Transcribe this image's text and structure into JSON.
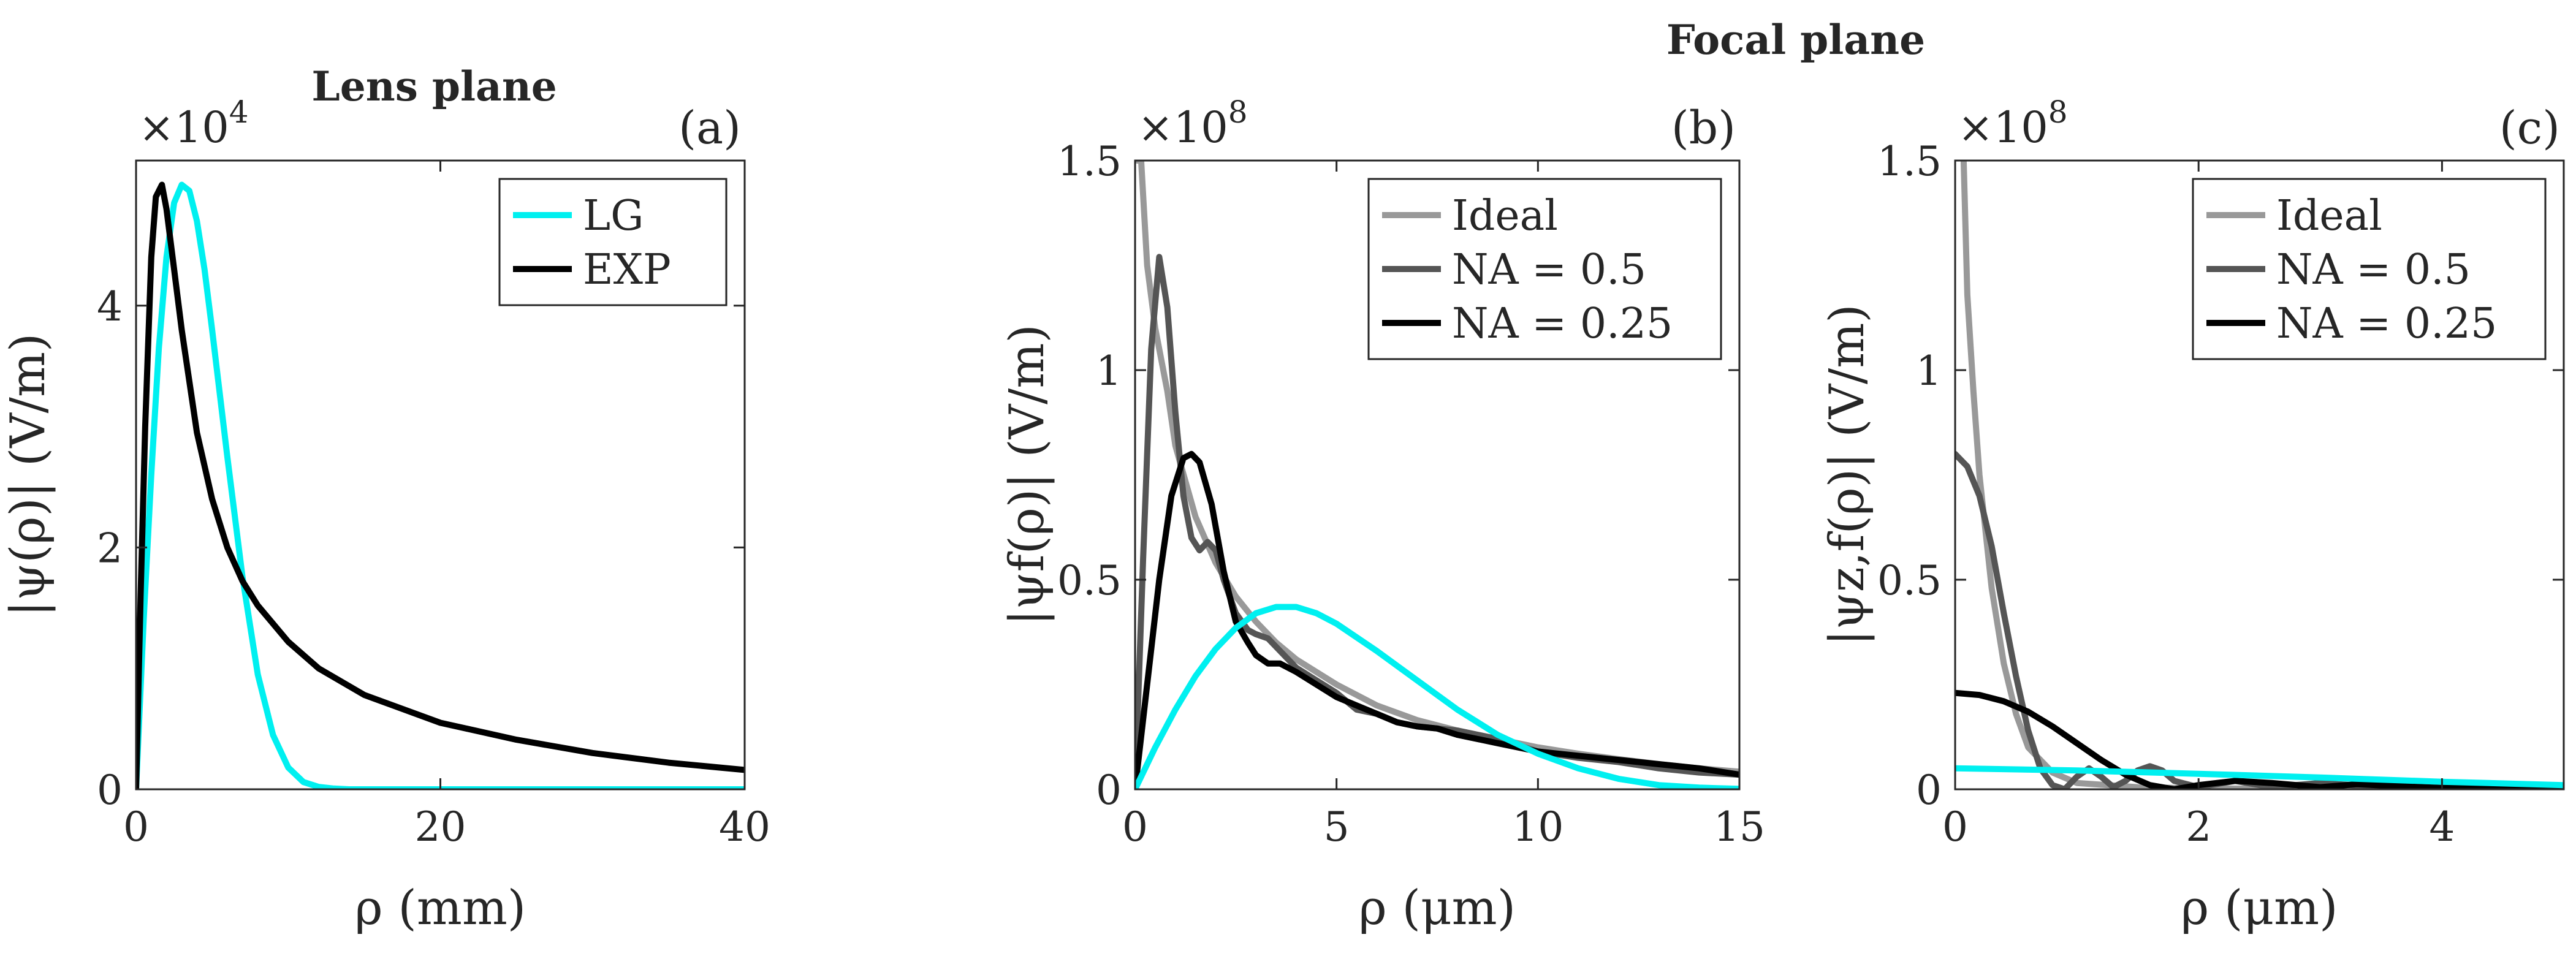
{
  "figure": {
    "suptitle": "Focal plane"
  },
  "chart_data": [
    {
      "id": "a",
      "type": "line",
      "title": "Lens plane",
      "panel_label": "(a)",
      "xlabel": "ρ (mm)",
      "ylabel": "|ψ(ρ)| (V/m)",
      "xlim": [
        0,
        40
      ],
      "ylim": [
        0,
        52000
      ],
      "xticks": [
        0,
        20,
        40
      ],
      "xtick_labels": [
        "0",
        "20",
        "40"
      ],
      "yticks": [
        0,
        20000,
        40000
      ],
      "ytick_labels": [
        "0",
        "2",
        "4"
      ],
      "multiplier_base": "×10",
      "multiplier_exp": "4",
      "legend_position": "top-right",
      "series": [
        {
          "name": "LG",
          "color": "#00f0f0",
          "x": [
            0,
            0.5,
            1,
            1.5,
            2,
            2.5,
            3,
            3.5,
            4,
            4.5,
            5,
            6,
            7,
            8,
            9,
            10,
            11,
            12,
            13,
            14,
            16,
            20,
            25,
            30,
            35,
            40
          ],
          "y": [
            0,
            14000,
            26000,
            36500,
            44000,
            48500,
            50000,
            49500,
            47000,
            43000,
            38000,
            27500,
            17500,
            9500,
            4500,
            1800,
            600,
            200,
            60,
            0,
            0,
            0,
            0,
            0,
            0,
            0
          ]
        },
        {
          "name": "EXP",
          "color": "#000000",
          "x": [
            0,
            0.3,
            0.6,
            1,
            1.3,
            1.7,
            2,
            2.5,
            3,
            4,
            5,
            6,
            7,
            8,
            10,
            12,
            15,
            20,
            25,
            30,
            35,
            40
          ],
          "y": [
            0,
            16000,
            30000,
            44000,
            49000,
            50000,
            48000,
            43000,
            38000,
            29500,
            24000,
            20000,
            17200,
            15200,
            12200,
            10000,
            7800,
            5500,
            4100,
            3000,
            2200,
            1600
          ]
        }
      ]
    },
    {
      "id": "b",
      "type": "line",
      "title": "",
      "panel_label": "(b)",
      "xlabel": "ρ (μm)",
      "ylabel": "|ψf(ρ)| (V/m)",
      "xlim": [
        0,
        15
      ],
      "ylim": [
        0,
        150000000
      ],
      "xticks": [
        0,
        5,
        10,
        15
      ],
      "xtick_labels": [
        "0",
        "5",
        "10",
        "15"
      ],
      "yticks": [
        0,
        50000000,
        100000000,
        150000000
      ],
      "ytick_labels": [
        "0",
        "0.5",
        "1",
        "1.5"
      ],
      "multiplier_base": "×10",
      "multiplier_exp": "8",
      "legend_position": "top-right",
      "series": [
        {
          "name": "Ideal",
          "color": "#999999",
          "x": [
            0.05,
            0.15,
            0.3,
            0.5,
            0.8,
            1,
            1.5,
            2,
            2.5,
            3,
            3.5,
            4,
            5,
            6,
            7,
            8,
            9,
            10,
            11,
            12,
            13,
            14,
            15
          ],
          "y": [
            150000000,
            150000000,
            125000000,
            110000000,
            95000000,
            82000000,
            65000000,
            54000000,
            46000000,
            40000000,
            35000000,
            31000000,
            25000000,
            20000000,
            16500000,
            14000000,
            12000000,
            10000000,
            8500000,
            7200000,
            6000000,
            5000000,
            4200000
          ]
        },
        {
          "name": "NA = 0.5",
          "color": "#555555",
          "x": [
            0,
            0.2,
            0.4,
            0.6,
            0.8,
            1,
            1.2,
            1.4,
            1.6,
            1.8,
            2,
            2.2,
            2.5,
            2.8,
            3,
            3.3,
            3.6,
            4,
            4.5,
            5,
            5.5,
            6,
            6.5,
            7,
            7.5,
            8,
            9,
            10,
            11,
            12,
            13,
            14,
            15
          ],
          "y": [
            0,
            55000000,
            105000000,
            127000000,
            115000000,
            90000000,
            70000000,
            60000000,
            57000000,
            59000000,
            57000000,
            50000000,
            42000000,
            38000000,
            37000000,
            36000000,
            33000000,
            29000000,
            26000000,
            23000000,
            19000000,
            18000000,
            16000000,
            15000000,
            14500000,
            14000000,
            12000000,
            9000000,
            7500000,
            6500000,
            5000000,
            4000000,
            3500000
          ]
        },
        {
          "name": "NA = 0.25",
          "color": "#000000",
          "x": [
            0,
            0.3,
            0.6,
            0.9,
            1.2,
            1.4,
            1.6,
            1.9,
            2.2,
            2.5,
            2.8,
            3,
            3.3,
            3.6,
            4,
            4.5,
            5,
            5.5,
            6,
            6.5,
            7,
            7.5,
            8,
            9,
            10,
            11,
            12,
            13,
            14,
            15
          ],
          "y": [
            0,
            25000000,
            50000000,
            70000000,
            79000000,
            80000000,
            78000000,
            68000000,
            52000000,
            40000000,
            35000000,
            32000000,
            30000000,
            30000000,
            28000000,
            25000000,
            22000000,
            20000000,
            18000000,
            16000000,
            15000000,
            14500000,
            13000000,
            11000000,
            9000000,
            8000000,
            7000000,
            6000000,
            5000000,
            3500000
          ]
        },
        {
          "name": "",
          "color": "#00f0f0",
          "x": [
            0,
            0.5,
            1,
            1.5,
            2,
            2.5,
            3,
            3.5,
            4,
            4.5,
            5,
            6,
            7,
            8,
            9,
            10,
            11,
            12,
            13,
            14,
            15
          ],
          "y": [
            0,
            10000000,
            19000000,
            27000000,
            33500000,
            38500000,
            42000000,
            43500000,
            43500000,
            42000000,
            39500000,
            33000000,
            26000000,
            19000000,
            13000000,
            8500000,
            5000000,
            2500000,
            1000000,
            400000,
            100000
          ]
        }
      ]
    },
    {
      "id": "c",
      "type": "line",
      "title": "",
      "panel_label": "(c)",
      "xlabel": "ρ (μm)",
      "ylabel": "|ψz,f(ρ)| (V/m)",
      "xlim": [
        0,
        5
      ],
      "ylim": [
        0,
        150000000
      ],
      "xticks": [
        0,
        2,
        4
      ],
      "xtick_labels": [
        "0",
        "2",
        "4"
      ],
      "yticks": [
        0,
        50000000,
        100000000,
        150000000
      ],
      "ytick_labels": [
        "0",
        "0.5",
        "1",
        "1.5"
      ],
      "multiplier_base": "×10",
      "multiplier_exp": "8",
      "legend_position": "top-right",
      "series": [
        {
          "name": "Ideal",
          "color": "#999999",
          "x": [
            0.07,
            0.1,
            0.15,
            0.2,
            0.3,
            0.4,
            0.5,
            0.6,
            0.8,
            1,
            1.5,
            2,
            3,
            4,
            5
          ],
          "y": [
            150000000,
            118000000,
            95000000,
            75000000,
            48000000,
            30000000,
            18000000,
            10000000,
            4000000,
            1500000,
            500000,
            200000,
            100000,
            50000,
            20000
          ]
        },
        {
          "name": "NA = 0.5",
          "color": "#555555",
          "x": [
            0,
            0.1,
            0.2,
            0.3,
            0.4,
            0.5,
            0.6,
            0.7,
            0.8,
            0.9,
            1,
            1.1,
            1.2,
            1.3,
            1.4,
            1.5,
            1.6,
            1.7,
            1.8,
            2,
            2.3,
            2.6,
            3,
            3.5,
            4,
            4.5,
            5
          ],
          "y": [
            80000000,
            77000000,
            70000000,
            58000000,
            42000000,
            27000000,
            14000000,
            5000000,
            1000000,
            0,
            3000000,
            5000000,
            3000000,
            500000,
            2000000,
            4500000,
            5500000,
            4500000,
            2000000,
            500000,
            2000000,
            500000,
            1500000,
            500000,
            1000000,
            300000,
            500000
          ]
        },
        {
          "name": "NA = 0.25",
          "color": "#000000",
          "x": [
            0,
            0.2,
            0.4,
            0.6,
            0.8,
            1,
            1.2,
            1.4,
            1.6,
            1.8,
            2,
            2.3,
            2.6,
            3,
            3.3,
            3.6,
            4,
            4.5,
            5
          ],
          "y": [
            23000000,
            22500000,
            21000000,
            18500000,
            15000000,
            11000000,
            7000000,
            3500000,
            1000000,
            0,
            1000000,
            2000000,
            1500000,
            500000,
            1200000,
            800000,
            300000,
            800000,
            500000
          ]
        },
        {
          "name": "",
          "color": "#00f0f0",
          "x": [
            0,
            1,
            2,
            3,
            4,
            5
          ],
          "y": [
            5000000,
            4500000,
            3700000,
            2800000,
            1800000,
            1000000
          ]
        }
      ]
    }
  ]
}
